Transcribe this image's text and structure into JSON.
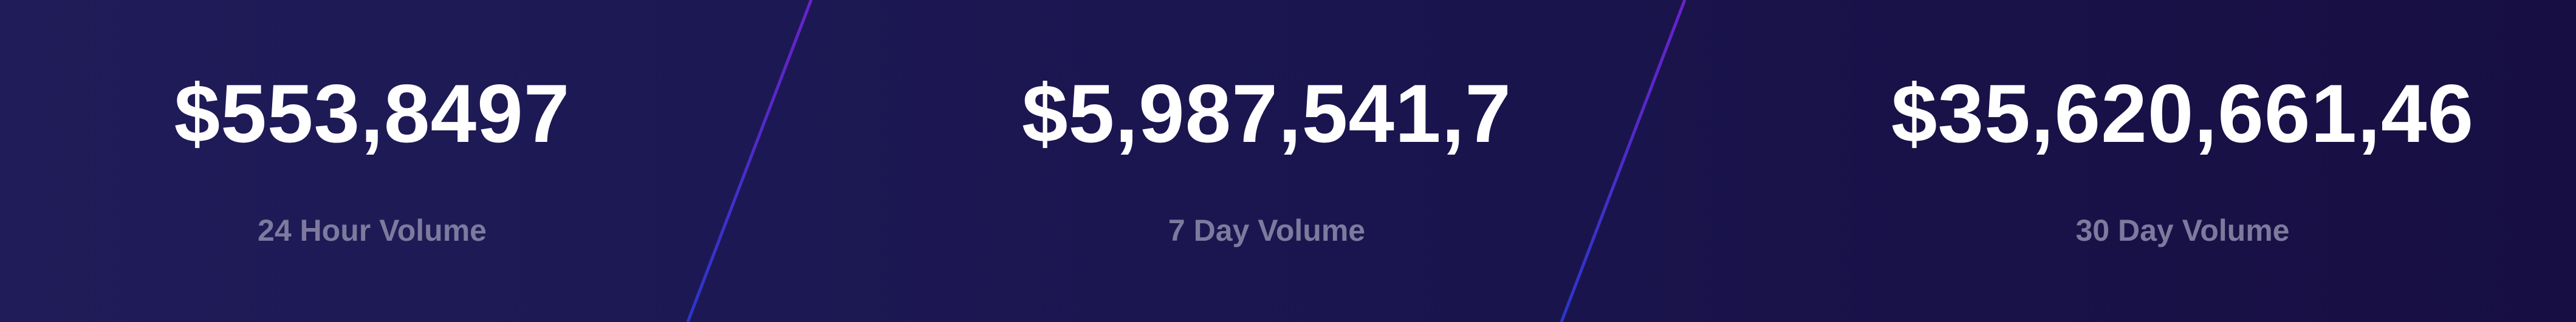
{
  "stats": [
    {
      "value": "$553,8497",
      "label": "24 Hour Volume"
    },
    {
      "value": "$5,987,541,7",
      "label": "7 Day Volume"
    },
    {
      "value": "$35,620,661,46",
      "label": "30 Day Volume"
    }
  ],
  "colors": {
    "background_start": "#1f1c59",
    "background_end": "#170f43",
    "value_text": "#ffffff",
    "label_text": "#7d7a9e",
    "divider_top": "#6a22c9",
    "divider_bottom": "#2b36c8"
  }
}
